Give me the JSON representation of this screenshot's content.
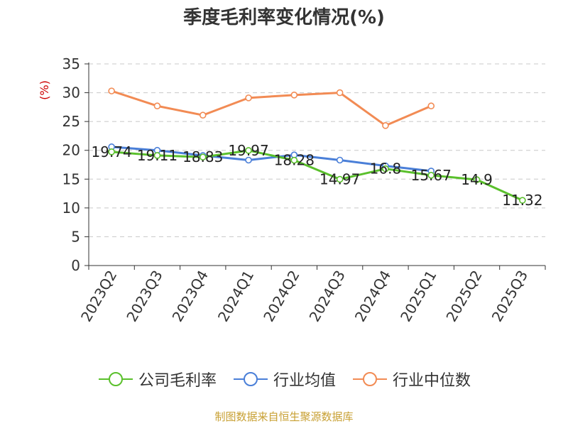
{
  "title": "季度毛利率变化情况(%)",
  "source": "制图数据来自恒生聚源数据库",
  "chart_data": {
    "type": "line",
    "title": "季度毛利率变化情况(%)",
    "ylabel": "(%)",
    "ylim": [
      0,
      35
    ],
    "yticks": [
      0,
      5,
      10,
      15,
      20,
      25,
      30,
      35
    ],
    "grid": true,
    "legend_position": "bottom",
    "categories": [
      "2023Q2",
      "2023Q3",
      "2023Q4",
      "2024Q1",
      "2024Q2",
      "2024Q3",
      "2024Q4",
      "2025Q1",
      "2025Q2",
      "2025Q3"
    ],
    "series": [
      {
        "name": "公司毛利率",
        "color": "#5ac02c",
        "values": [
          19.74,
          19.11,
          18.83,
          19.97,
          18.28,
          14.97,
          16.8,
          15.67,
          14.9,
          11.32
        ],
        "labels": [
          "19.74",
          "19.11",
          "18.83",
          "19.97",
          "18.28",
          "14.97",
          "16.8",
          "15.67",
          "14.9",
          "11.32"
        ]
      },
      {
        "name": "行业均值",
        "color": "#4a7fd8",
        "values": [
          20.6,
          20.0,
          19.1,
          18.3,
          19.2,
          18.3,
          17.3,
          16.4,
          null,
          null
        ]
      },
      {
        "name": "行业中位数",
        "color": "#f28b54",
        "values": [
          30.3,
          27.7,
          26.1,
          29.1,
          29.6,
          30.0,
          24.3,
          27.7,
          null,
          null
        ]
      }
    ]
  }
}
